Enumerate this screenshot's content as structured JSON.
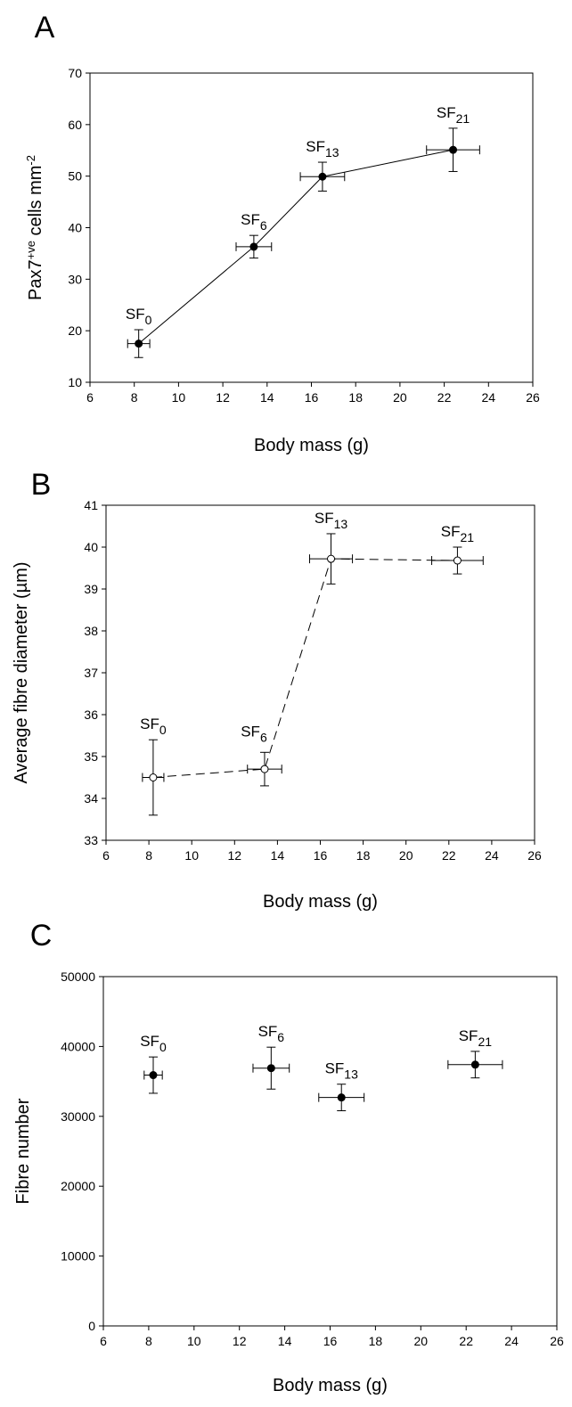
{
  "chart_data": [
    {
      "panel": "A",
      "type": "line",
      "line_style": "solid",
      "marker": "filled",
      "xlabel": "Body mass (g)",
      "ylabel_main": "Pax7",
      "ylabel_sup": "+ve",
      "ylabel_rest": " cells mm",
      "ylabel_sup2": "-2",
      "xlim": [
        6,
        26
      ],
      "ylim": [
        10,
        70
      ],
      "xticks": [
        6,
        8,
        10,
        12,
        14,
        16,
        18,
        20,
        22,
        24,
        26
      ],
      "yticks": [
        10,
        20,
        30,
        40,
        50,
        60,
        70
      ],
      "points": [
        {
          "label": "SF",
          "sub": "0",
          "x": 8.2,
          "y": 17.5,
          "xerr": 0.5,
          "yerr": 2.7
        },
        {
          "label": "SF",
          "sub": "6",
          "x": 13.4,
          "y": 36.3,
          "xerr": 0.8,
          "yerr": 2.2
        },
        {
          "label": "SF",
          "sub": "13",
          "x": 16.5,
          "y": 49.9,
          "xerr": 1.0,
          "yerr": 2.8
        },
        {
          "label": "SF",
          "sub": "21",
          "x": 22.4,
          "y": 55.1,
          "xerr": 1.2,
          "yerr": 4.2
        }
      ]
    },
    {
      "panel": "B",
      "type": "line",
      "line_style": "dashed",
      "marker": "open",
      "xlabel": "Body mass (g)",
      "ylabel_main": "Average fibre diameter (µm)",
      "xlim": [
        6,
        26
      ],
      "ylim": [
        33,
        41
      ],
      "xticks": [
        6,
        8,
        10,
        12,
        14,
        16,
        18,
        20,
        22,
        24,
        26
      ],
      "yticks": [
        33,
        34,
        35,
        36,
        37,
        38,
        39,
        40,
        41
      ],
      "points": [
        {
          "label": "SF",
          "sub": "0",
          "x": 8.2,
          "y": 34.5,
          "xerr": 0.5,
          "yerr": 0.9
        },
        {
          "label": "SF",
          "sub": "6",
          "x": 13.4,
          "y": 34.7,
          "xerr": 0.8,
          "yerr": 0.4
        },
        {
          "label": "SF",
          "sub": "13",
          "x": 16.5,
          "y": 39.72,
          "xerr": 1.0,
          "yerr": 0.6
        },
        {
          "label": "SF",
          "sub": "21",
          "x": 22.4,
          "y": 39.68,
          "xerr": 1.2,
          "yerr": 0.32
        }
      ]
    },
    {
      "panel": "C",
      "type": "scatter",
      "line_style": "none",
      "marker": "filled",
      "xlabel": "Body mass (g)",
      "ylabel_main": "Fibre number",
      "xlim": [
        6,
        26
      ],
      "ylim": [
        0,
        50000
      ],
      "xticks": [
        6,
        8,
        10,
        12,
        14,
        16,
        18,
        20,
        22,
        24,
        26
      ],
      "yticks": [
        0,
        10000,
        20000,
        30000,
        40000,
        50000
      ],
      "points": [
        {
          "label": "SF",
          "sub": "0",
          "x": 8.2,
          "y": 35900,
          "xerr": 0.4,
          "yerr": 2600
        },
        {
          "label": "SF",
          "sub": "6",
          "x": 13.4,
          "y": 36900,
          "xerr": 0.8,
          "yerr": 3000
        },
        {
          "label": "SF",
          "sub": "13",
          "x": 16.5,
          "y": 32700,
          "xerr": 1.0,
          "yerr": 1900
        },
        {
          "label": "SF",
          "sub": "21",
          "x": 22.4,
          "y": 37400,
          "xerr": 1.2,
          "yerr": 1900
        }
      ]
    }
  ]
}
